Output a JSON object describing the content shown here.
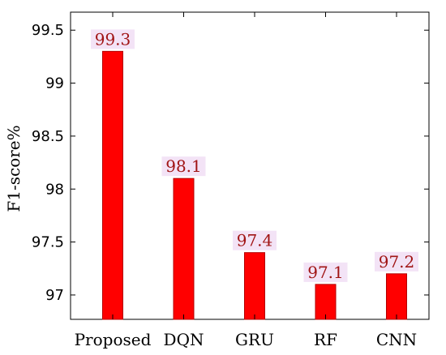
{
  "chart_data": {
    "type": "bar",
    "categories": [
      "Proposed",
      "DQN",
      "GRU",
      "RF",
      "CNN"
    ],
    "values": [
      99.3,
      98.1,
      97.4,
      97.1,
      97.2
    ],
    "value_labels": [
      "99.3",
      "98.1",
      "97.4",
      "97.1",
      "97.2"
    ],
    "title": "",
    "xlabel": "",
    "ylabel": "F1-score%",
    "ylim": [
      96.77,
      99.67
    ],
    "yticks": [
      97,
      97.5,
      98,
      98.5,
      99,
      99.5
    ],
    "ytick_labels": [
      "97",
      "97.5",
      "98",
      "98.5",
      "99",
      "99.5"
    ],
    "grid": false,
    "colors": {
      "bar_fill": "#ff0000",
      "bar_edge": "#b40000",
      "label_text": "#a01414",
      "label_bg": "#f3e3f6",
      "axis": "#000000"
    }
  }
}
